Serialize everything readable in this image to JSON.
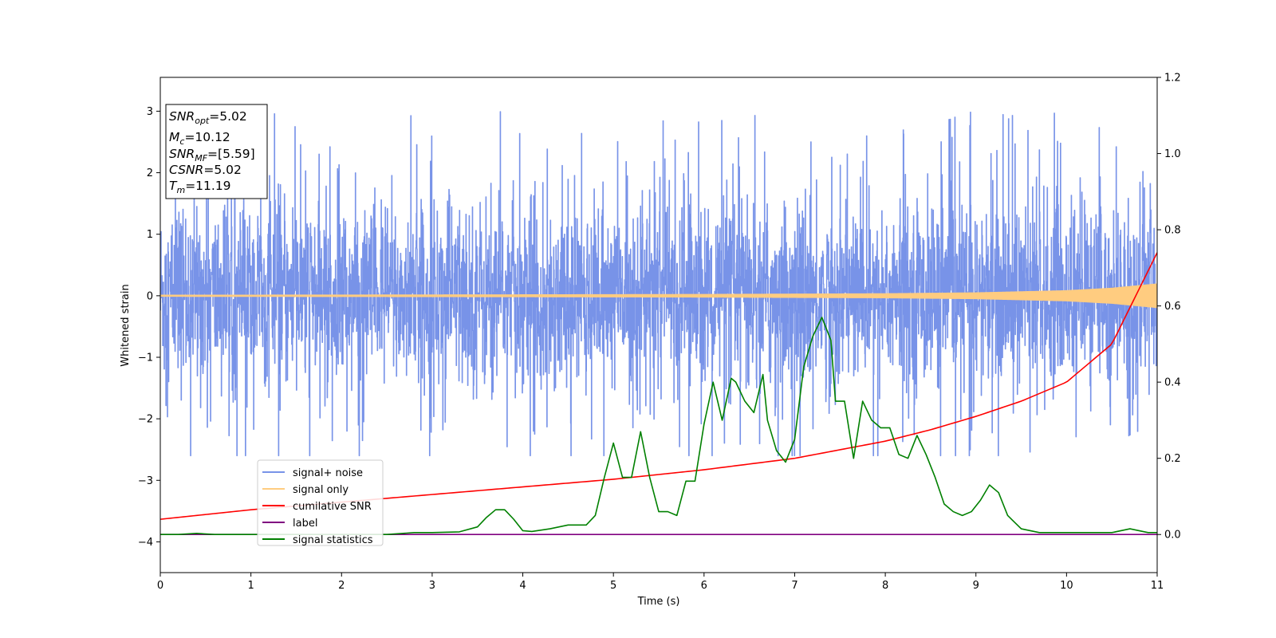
{
  "chart_data": {
    "type": "line",
    "xlabel": "Time (s)",
    "ylabel_left": "Whitened strain",
    "xlim": [
      0,
      11
    ],
    "ylim_left": [
      -4.5,
      3.55
    ],
    "ylim_right": [
      -0.1,
      1.2
    ],
    "x_ticks": [
      "0",
      "1",
      "2",
      "3",
      "4",
      "5",
      "6",
      "7",
      "8",
      "9",
      "10",
      "11"
    ],
    "y_left_ticks": [
      "−4",
      "−3",
      "−2",
      "−1",
      "0",
      "1",
      "2",
      "3"
    ],
    "y_right_ticks": [
      "0.0",
      "0.2",
      "0.4",
      "0.6",
      "0.8",
      "1.0",
      "1.2"
    ],
    "grid": false,
    "legend_position": "lower-left",
    "info_box": {
      "position": "upper-left",
      "lines": [
        {
          "var": "SNR",
          "sub": "opt",
          "value": "=5.02"
        },
        {
          "var": "M",
          "sub": "c",
          "value": "=10.12"
        },
        {
          "var": "SNR",
          "sub": "MF",
          "value": "=[5.59]"
        },
        {
          "var": "CSNR",
          "sub": "",
          "value": "=5.02"
        },
        {
          "var": "T",
          "sub": "m",
          "value": "=11.19"
        }
      ]
    },
    "series": [
      {
        "name": "signal+ noise",
        "color": "#7893e8",
        "axis": "left",
        "description_envelope_min": -2.6,
        "description_envelope_max": 3.2,
        "rendering": "dense white-noise trace, roughly ±1.5 with spikes to about ±3"
      },
      {
        "name": "signal only",
        "color": "#ffcc80",
        "axis": "left",
        "amplitude_t": [
          0,
          2,
          4,
          6,
          8,
          9,
          10,
          10.5,
          11
        ],
        "amplitude": [
          0.015,
          0.018,
          0.022,
          0.028,
          0.04,
          0.055,
          0.09,
          0.13,
          0.2
        ]
      },
      {
        "name": "cumilative SNR",
        "color": "#ff0000",
        "axis": "right",
        "x": [
          0,
          1,
          2,
          3,
          4,
          5,
          6,
          7,
          8,
          8.5,
          9,
          9.5,
          10,
          10.5,
          11
        ],
        "y": [
          0.04,
          0.065,
          0.085,
          0.105,
          0.125,
          0.145,
          0.17,
          0.2,
          0.245,
          0.275,
          0.31,
          0.35,
          0.4,
          0.5,
          0.74
        ]
      },
      {
        "name": "label",
        "color": "#800080",
        "axis": "right",
        "x": [
          0,
          11
        ],
        "y": [
          0.0,
          0.0
        ]
      },
      {
        "name": "signal statistics",
        "color": "#008000",
        "axis": "right",
        "x": [
          0,
          0.2,
          0.4,
          0.6,
          1.0,
          1.5,
          2.0,
          2.5,
          2.8,
          3.0,
          3.3,
          3.5,
          3.6,
          3.7,
          3.8,
          3.9,
          4.0,
          4.1,
          4.3,
          4.5,
          4.7,
          4.8,
          4.9,
          5.0,
          5.1,
          5.2,
          5.3,
          5.4,
          5.5,
          5.6,
          5.7,
          5.8,
          5.9,
          6.0,
          6.1,
          6.2,
          6.3,
          6.35,
          6.45,
          6.55,
          6.65,
          6.7,
          6.8,
          6.9,
          7.0,
          7.1,
          7.2,
          7.3,
          7.4,
          7.45,
          7.55,
          7.65,
          7.75,
          7.85,
          7.95,
          8.05,
          8.15,
          8.25,
          8.35,
          8.45,
          8.55,
          8.65,
          8.75,
          8.85,
          8.95,
          9.05,
          9.15,
          9.25,
          9.35,
          9.5,
          9.7,
          10.0,
          10.3,
          10.5,
          10.7,
          10.9,
          11.0
        ],
        "y": [
          0.0,
          0.0,
          0.003,
          0.0,
          0.0,
          0.0,
          0.0,
          0.0,
          0.005,
          0.005,
          0.007,
          0.02,
          0.045,
          0.065,
          0.065,
          0.04,
          0.01,
          0.008,
          0.015,
          0.025,
          0.025,
          0.05,
          0.15,
          0.24,
          0.15,
          0.15,
          0.27,
          0.15,
          0.06,
          0.06,
          0.05,
          0.14,
          0.14,
          0.29,
          0.4,
          0.3,
          0.41,
          0.4,
          0.35,
          0.32,
          0.42,
          0.3,
          0.22,
          0.19,
          0.25,
          0.44,
          0.52,
          0.57,
          0.51,
          0.35,
          0.35,
          0.2,
          0.35,
          0.3,
          0.28,
          0.28,
          0.21,
          0.2,
          0.26,
          0.21,
          0.15,
          0.08,
          0.06,
          0.05,
          0.06,
          0.09,
          0.13,
          0.11,
          0.05,
          0.015,
          0.005,
          0.005,
          0.005,
          0.005,
          0.015,
          0.005,
          0.005
        ]
      }
    ]
  }
}
